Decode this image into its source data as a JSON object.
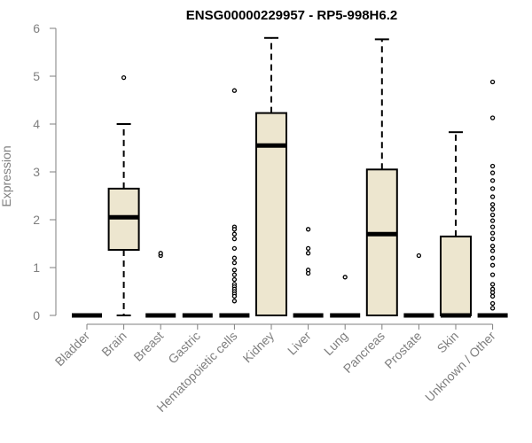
{
  "chart_data": {
    "type": "boxplot",
    "title": "ENSG00000229957 - RP5-998H6.2",
    "xlabel": "",
    "ylabel": "Expression",
    "ylim": [
      0,
      6
    ],
    "yticks": [
      "0",
      "1",
      "2",
      "3",
      "4",
      "5",
      "6"
    ],
    "grid": false,
    "colors": {
      "box_fill": "#EDE6CF",
      "stroke": "#000000",
      "axis_text": "#7f7f7f",
      "title": "#000000"
    },
    "categories": [
      "Bladder",
      "Brain",
      "Breast",
      "Gastric",
      "Hematopoietic cells",
      "Kidney",
      "Liver",
      "Lung",
      "Pancreas",
      "Prostate",
      "Skin",
      "Unknown / Other"
    ],
    "boxes": [
      {
        "q1": 0,
        "median": 0,
        "q3": 0,
        "whisker_low": 0,
        "whisker_high": 0,
        "outliers": []
      },
      {
        "q1": 1.37,
        "median": 2.05,
        "q3": 2.65,
        "whisker_low": 0,
        "whisker_high": 4.0,
        "outliers": [
          4.97
        ]
      },
      {
        "q1": 0,
        "median": 0,
        "q3": 0,
        "whisker_low": 0,
        "whisker_high": 0,
        "outliers": [
          1.25,
          1.3
        ]
      },
      {
        "q1": 0,
        "median": 0,
        "q3": 0,
        "whisker_low": 0,
        "whisker_high": 0,
        "outliers": []
      },
      {
        "q1": 0,
        "median": 0,
        "q3": 0,
        "whisker_low": 0,
        "whisker_high": 0,
        "outliers": [
          4.7,
          1.85,
          1.8,
          1.7,
          1.6,
          1.4,
          1.2,
          1.1,
          0.95,
          0.85,
          0.75,
          0.65,
          0.6,
          0.55,
          0.5,
          0.45,
          0.4,
          0.3
        ]
      },
      {
        "q1": 0,
        "median": 3.55,
        "q3": 4.23,
        "whisker_low": 0,
        "whisker_high": 5.8,
        "outliers": []
      },
      {
        "q1": 0,
        "median": 0,
        "q3": 0,
        "whisker_low": 0,
        "whisker_high": 0,
        "outliers": [
          1.8,
          1.4,
          1.3,
          0.95,
          0.88
        ]
      },
      {
        "q1": 0,
        "median": 0,
        "q3": 0,
        "whisker_low": 0,
        "whisker_high": 0,
        "outliers": [
          0.8
        ]
      },
      {
        "q1": 0,
        "median": 1.7,
        "q3": 3.05,
        "whisker_low": 0,
        "whisker_high": 5.77,
        "outliers": []
      },
      {
        "q1": 0,
        "median": 0,
        "q3": 0,
        "whisker_low": 0,
        "whisker_high": 0,
        "outliers": [
          1.25
        ]
      },
      {
        "q1": 0,
        "median": 0,
        "q3": 1.65,
        "whisker_low": 0,
        "whisker_high": 3.83,
        "outliers": []
      },
      {
        "q1": 0,
        "median": 0,
        "q3": 0,
        "whisker_low": 0,
        "whisker_high": 0,
        "outliers": [
          4.88,
          4.13,
          3.12,
          2.98,
          2.82,
          2.65,
          2.48,
          2.32,
          2.22,
          2.1,
          1.98,
          1.85,
          1.72,
          1.6,
          1.45,
          1.35,
          1.2,
          1.05,
          0.85,
          0.65,
          0.55,
          0.48,
          0.4,
          0.25,
          0.15
        ]
      }
    ]
  }
}
